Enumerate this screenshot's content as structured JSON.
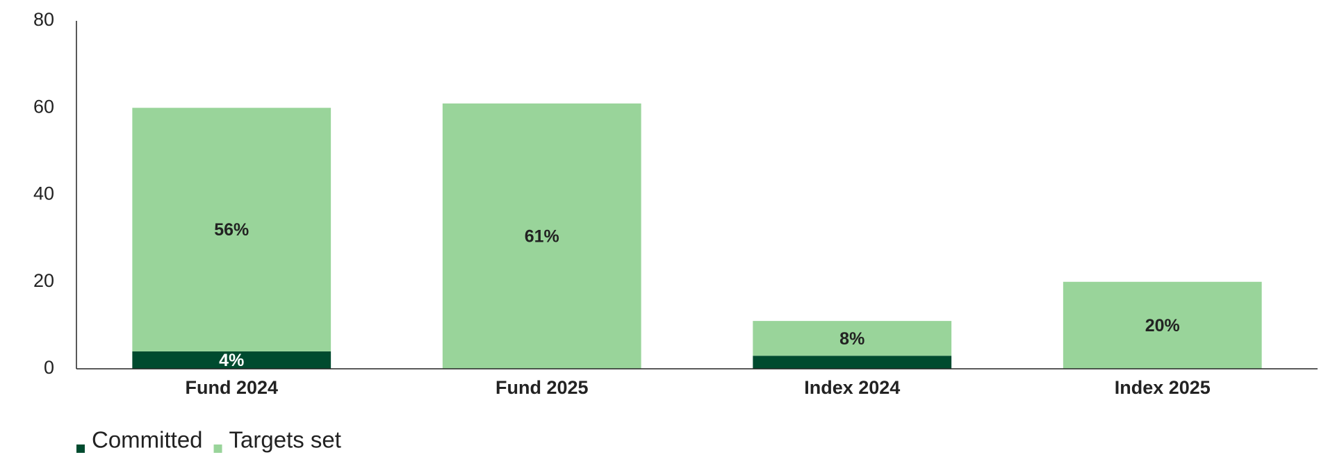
{
  "chart_data": {
    "type": "stacked-bar",
    "categories": [
      "Fund 2024",
      "Fund 2025",
      "Index 2024",
      "Index 2025"
    ],
    "series": [
      {
        "name": "Committed",
        "color": "#004b2f",
        "values": [
          4,
          null,
          3,
          null
        ],
        "value_labels": [
          "4%",
          null,
          null,
          null
        ],
        "label_color": "#ffffff"
      },
      {
        "name": "Targets set",
        "color": "#99d49a",
        "values": [
          56,
          61,
          8,
          20
        ],
        "value_labels": [
          "56%",
          "61%",
          "8%",
          "20%"
        ],
        "label_color": "#222222"
      }
    ],
    "ylim": [
      0,
      80
    ],
    "yticks": [
      0,
      20,
      40,
      60,
      80
    ],
    "grid": false,
    "legend": "bottom-left"
  }
}
